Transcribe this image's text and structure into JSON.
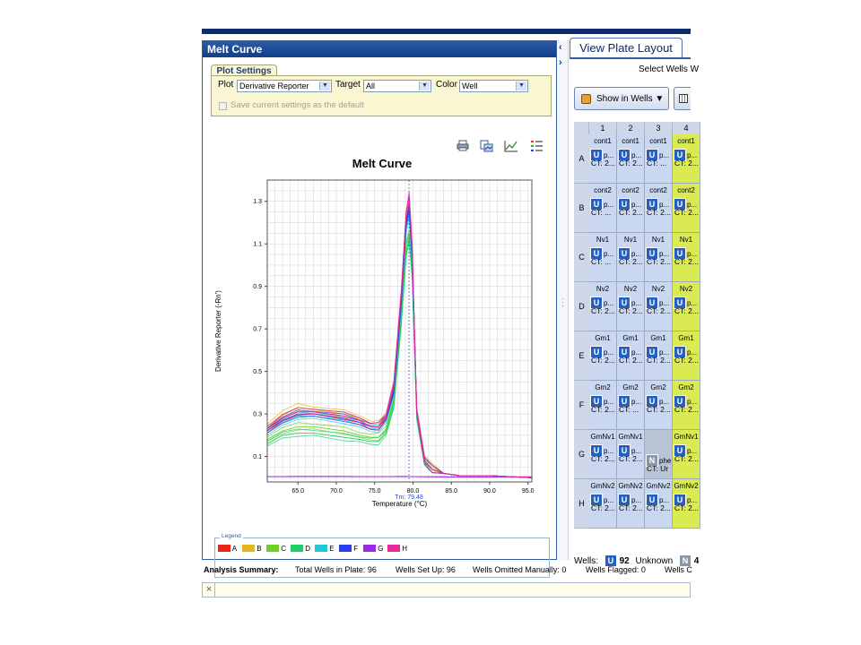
{
  "melt_panel": {
    "header": "Melt Curve",
    "plot_settings_tab": "Plot Settings",
    "plot_label": "Plot",
    "plot_value": "Derivative Reporter",
    "target_label": "Target",
    "target_value": "All",
    "color_label": "Color",
    "color_value": "Well",
    "save_default_label": "Save current settings as the default",
    "toolbar_icons": [
      "print-icon",
      "copy-image-icon",
      "line-plot-icon",
      "list-icon"
    ]
  },
  "chart_data": {
    "type": "line",
    "title": "Melt Curve",
    "xlabel": "Temperature (°C)",
    "ylabel": "Derivative Reporter (-Rn')",
    "xlim": [
      61.0,
      95.5
    ],
    "ylim": [
      -0.02,
      1.4
    ],
    "x_ticks": [
      "65.0",
      "70.0",
      "75.0",
      "80.0",
      "85.0",
      "90.0",
      "95.0"
    ],
    "y_ticks": [
      "0.1",
      "0.3",
      "0.5",
      "0.7",
      "0.9",
      "1.1",
      "1.3"
    ],
    "grid": true,
    "tm_label": "Tm: 79.48",
    "tm_value": 79.48,
    "legend_title": "Legend",
    "legend_position": "bottom",
    "series": [
      {
        "name": "A",
        "color": "#e8261e",
        "x": [
          61.0,
          63.0,
          65.0,
          67.0,
          69.0,
          71.0,
          73.0,
          74.5,
          75.5,
          76.5,
          77.5,
          78.5,
          79.1,
          79.5,
          79.9,
          80.5,
          81.5,
          82.5,
          84.0,
          86.0,
          90.0,
          95.5
        ],
        "y": [
          0.22,
          0.28,
          0.31,
          0.31,
          0.3,
          0.29,
          0.27,
          0.24,
          0.24,
          0.28,
          0.42,
          0.85,
          1.2,
          1.28,
          1.05,
          0.3,
          0.08,
          0.04,
          0.02,
          0.01,
          0.01,
          0.0
        ]
      },
      {
        "name": "B",
        "color": "#e0b81e",
        "x": [
          61.0,
          63.0,
          65.0,
          67.0,
          69.0,
          71.0,
          73.0,
          74.5,
          75.5,
          76.5,
          77.5,
          78.5,
          79.1,
          79.5,
          79.9,
          80.5,
          81.5,
          82.5,
          84.0,
          86.0,
          90.0,
          95.5
        ],
        "y": [
          0.24,
          0.3,
          0.33,
          0.32,
          0.31,
          0.3,
          0.28,
          0.25,
          0.25,
          0.29,
          0.43,
          0.84,
          1.18,
          1.26,
          1.04,
          0.32,
          0.09,
          0.05,
          0.02,
          0.01,
          0.01,
          0.0
        ]
      },
      {
        "name": "C",
        "color": "#6ccf2a",
        "x": [
          61.0,
          63.0,
          65.0,
          67.0,
          69.0,
          71.0,
          73.0,
          74.5,
          75.5,
          76.5,
          77.5,
          78.5,
          79.1,
          79.5,
          79.9,
          80.5,
          81.5,
          82.5,
          84.0,
          86.0,
          90.0,
          95.5
        ],
        "y": [
          0.18,
          0.22,
          0.24,
          0.24,
          0.23,
          0.22,
          0.2,
          0.19,
          0.19,
          0.23,
          0.37,
          0.78,
          1.1,
          1.15,
          0.98,
          0.3,
          0.08,
          0.04,
          0.02,
          0.01,
          0.01,
          0.0
        ]
      },
      {
        "name": "D",
        "color": "#1fcf69",
        "x": [
          61.0,
          63.0,
          65.0,
          67.0,
          69.0,
          71.0,
          73.0,
          74.5,
          75.5,
          76.5,
          77.5,
          78.5,
          79.1,
          79.5,
          79.9,
          80.5,
          81.5,
          82.5,
          84.0,
          86.0,
          90.0,
          95.5
        ],
        "y": [
          0.16,
          0.2,
          0.21,
          0.21,
          0.2,
          0.19,
          0.18,
          0.17,
          0.17,
          0.21,
          0.34,
          0.74,
          1.05,
          1.12,
          0.95,
          0.28,
          0.07,
          0.04,
          0.02,
          0.01,
          0.01,
          0.0
        ]
      },
      {
        "name": "E",
        "color": "#1fc9d8",
        "x": [
          61.0,
          63.0,
          65.0,
          67.0,
          69.0,
          71.0,
          73.0,
          74.5,
          75.5,
          76.5,
          77.5,
          78.5,
          79.1,
          79.5,
          79.9,
          80.5,
          81.5,
          82.5,
          84.0,
          86.0,
          90.0,
          95.5
        ],
        "y": [
          0.21,
          0.26,
          0.29,
          0.29,
          0.28,
          0.27,
          0.25,
          0.23,
          0.23,
          0.27,
          0.4,
          0.82,
          1.16,
          1.24,
          1.02,
          0.3,
          0.08,
          0.04,
          0.02,
          0.01,
          0.01,
          0.0
        ]
      },
      {
        "name": "F",
        "color": "#2a3ee6",
        "x": [
          61.0,
          63.0,
          65.0,
          67.0,
          69.0,
          71.0,
          73.0,
          74.5,
          75.5,
          76.5,
          77.5,
          78.5,
          79.1,
          79.5,
          79.9,
          80.5,
          81.5,
          82.5,
          84.0,
          86.0,
          90.0,
          95.5
        ],
        "y": [
          0.22,
          0.27,
          0.3,
          0.3,
          0.29,
          0.28,
          0.26,
          0.24,
          0.24,
          0.28,
          0.41,
          0.84,
          1.19,
          1.27,
          1.04,
          0.31,
          0.08,
          0.04,
          0.02,
          0.01,
          0.01,
          0.0
        ]
      },
      {
        "name": "G",
        "color": "#9a2ae6",
        "x": [
          61.0,
          65.0,
          70.0,
          75.0,
          79.0,
          80.0,
          85.0,
          90.0,
          95.5
        ],
        "y": [
          0.005,
          0.006,
          0.006,
          0.005,
          0.006,
          0.005,
          0.004,
          0.004,
          0.004
        ]
      },
      {
        "name": "H",
        "color": "#e62a9a",
        "x": [
          61.0,
          63.0,
          65.0,
          67.0,
          69.0,
          71.0,
          73.0,
          74.5,
          75.5,
          76.5,
          77.5,
          78.5,
          79.1,
          79.5,
          79.9,
          80.5,
          81.5,
          82.5,
          84.0,
          86.0,
          90.0,
          95.5
        ],
        "y": [
          0.23,
          0.28,
          0.31,
          0.31,
          0.3,
          0.29,
          0.27,
          0.24,
          0.24,
          0.29,
          0.44,
          0.88,
          1.24,
          1.33,
          1.08,
          0.31,
          0.08,
          0.04,
          0.02,
          0.01,
          0.01,
          0.0
        ]
      }
    ]
  },
  "plate": {
    "tab_label": "View Plate Layout",
    "select_wells_label": "Select Wells W",
    "show_in_wells_label": "Show in Wells ▼",
    "columns": [
      "1",
      "2",
      "3",
      "4"
    ],
    "rows": [
      {
        "label": "A",
        "wells": [
          {
            "name": "cont1",
            "task": "U",
            "task_text": "p...",
            "ct": "CT: 2..."
          },
          {
            "name": "cont1",
            "task": "U",
            "task_text": "p...",
            "ct": "CT: 2..."
          },
          {
            "name": "cont1",
            "task": "U",
            "task_text": "p...",
            "ct": "CT: ..."
          },
          {
            "name": "cont1",
            "task": "U",
            "task_text": "p...",
            "ct": "CT: 2..."
          }
        ]
      },
      {
        "label": "B",
        "wells": [
          {
            "name": "cont2",
            "task": "U",
            "task_text": "p...",
            "ct": "CT: ..."
          },
          {
            "name": "cont2",
            "task": "U",
            "task_text": "p...",
            "ct": "CT: 2..."
          },
          {
            "name": "cont2",
            "task": "U",
            "task_text": "p...",
            "ct": "CT: 2..."
          },
          {
            "name": "cont2",
            "task": "U",
            "task_text": "p...",
            "ct": "CT: 2..."
          }
        ]
      },
      {
        "label": "C",
        "wells": [
          {
            "name": "Nv1",
            "task": "U",
            "task_text": "p...",
            "ct": "CT: ..."
          },
          {
            "name": "Nv1",
            "task": "U",
            "task_text": "p...",
            "ct": "CT: 2..."
          },
          {
            "name": "Nv1",
            "task": "U",
            "task_text": "p...",
            "ct": "CT: 2..."
          },
          {
            "name": "Nv1",
            "task": "U",
            "task_text": "p...",
            "ct": "CT: 2..."
          }
        ]
      },
      {
        "label": "D",
        "wells": [
          {
            "name": "Nv2",
            "task": "U",
            "task_text": "p...",
            "ct": "CT: 2..."
          },
          {
            "name": "Nv2",
            "task": "U",
            "task_text": "p...",
            "ct": "CT: 2..."
          },
          {
            "name": "Nv2",
            "task": "U",
            "task_text": "p...",
            "ct": "CT: 2..."
          },
          {
            "name": "Nv2",
            "task": "U",
            "task_text": "p...",
            "ct": "CT: 2..."
          }
        ]
      },
      {
        "label": "E",
        "wells": [
          {
            "name": "Gm1",
            "task": "U",
            "task_text": "p...",
            "ct": "CT: 2..."
          },
          {
            "name": "Gm1",
            "task": "U",
            "task_text": "p...",
            "ct": "CT: 2..."
          },
          {
            "name": "Gm1",
            "task": "U",
            "task_text": "p...",
            "ct": "CT: 2..."
          },
          {
            "name": "Gm1",
            "task": "U",
            "task_text": "p...",
            "ct": "CT: 2..."
          }
        ]
      },
      {
        "label": "F",
        "wells": [
          {
            "name": "Gm2",
            "task": "U",
            "task_text": "p...",
            "ct": "CT: 2..."
          },
          {
            "name": "Gm2",
            "task": "U",
            "task_text": "p...",
            "ct": "CT: ..."
          },
          {
            "name": "Gm2",
            "task": "U",
            "task_text": "p...",
            "ct": "CT: 2..."
          },
          {
            "name": "Gm2",
            "task": "U",
            "task_text": "p...",
            "ct": "CT: 2..."
          }
        ]
      },
      {
        "label": "G",
        "wells": [
          {
            "name": "GmNv1",
            "task": "U",
            "task_text": "p...",
            "ct": "CT: 2..."
          },
          {
            "name": "GmNv1",
            "task": "U",
            "task_text": "p...",
            "ct": "CT: 2..."
          },
          {
            "name": "",
            "task": "N",
            "task_text": "phe",
            "ct": "CT: Ur"
          },
          {
            "name": "GmNv1",
            "task": "U",
            "task_text": "p...",
            "ct": "CT: 2..."
          }
        ]
      },
      {
        "label": "H",
        "wells": [
          {
            "name": "GmNv2",
            "task": "U",
            "task_text": "p...",
            "ct": "CT: 2..."
          },
          {
            "name": "GmNv2",
            "task": "U",
            "task_text": "p...",
            "ct": "CT: 2..."
          },
          {
            "name": "GmNv2",
            "task": "U",
            "task_text": "p...",
            "ct": "CT: 2..."
          },
          {
            "name": "GmNv2",
            "task": "U",
            "task_text": "p...",
            "ct": "CT: 2..."
          }
        ]
      }
    ],
    "wells_label": "Wells:",
    "unknown_badge": "U",
    "unknown_count": "92",
    "unknown_label": "Unknown",
    "ntc_badge": "N",
    "ntc_count": "4"
  },
  "analysis_summary": {
    "label": "Analysis Summary:",
    "total_wells": "Total Wells in Plate: 96",
    "wells_set_up": "Wells Set Up: 96",
    "wells_omitted": "Wells Omitted Manually: 0",
    "wells_flagged": "Wells Flagged: 0",
    "wells_c": "Wells C"
  },
  "bottom_bar": {
    "close_symbol": "×"
  },
  "colors": {
    "header_blue": "#1e4b93",
    "plot_settings_bg": "#fbf6d2",
    "well_selected_bg": "#c9d8f0",
    "well_col4_bg": "#d9ea52",
    "unknown_badge": "#2560c0"
  }
}
